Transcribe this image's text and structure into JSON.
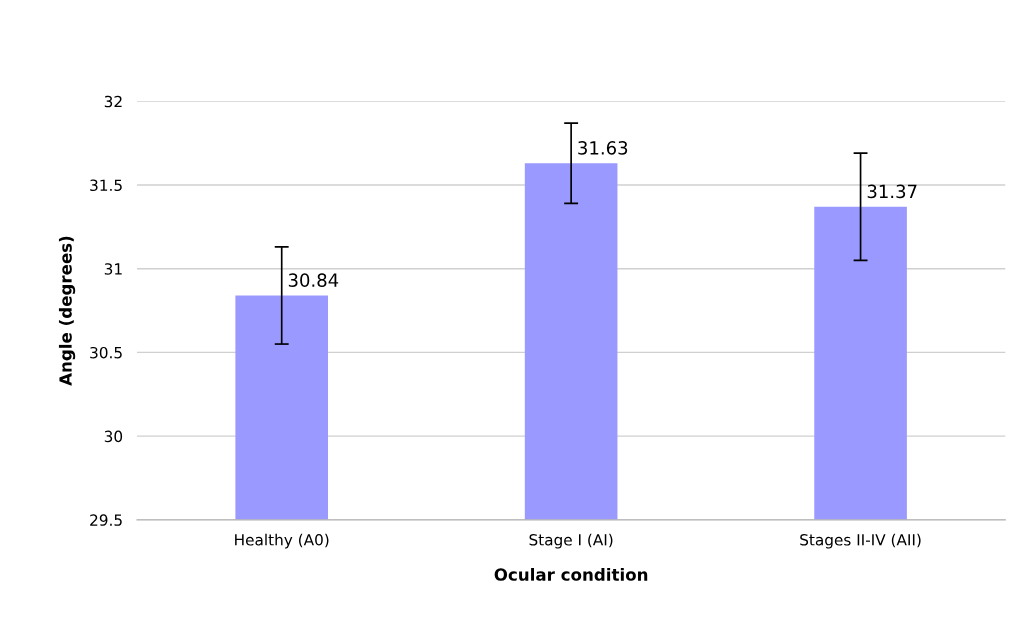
{
  "chart_data": {
    "type": "bar",
    "xlabel": "Ocular condition",
    "ylabel": "Angle (degrees)",
    "categories": [
      "Healthy (A0)",
      "Stage I (AI)",
      "Stages II-IV (AII)"
    ],
    "values": [
      30.84,
      31.63,
      31.37
    ],
    "errors": [
      0.29,
      0.24,
      0.32
    ],
    "color": "#9999ff",
    "ylim": [
      29.5,
      32
    ],
    "yticks": [
      29.5,
      30,
      30.5,
      31,
      31.5,
      32
    ],
    "grid": "y",
    "data_labels": true
  }
}
